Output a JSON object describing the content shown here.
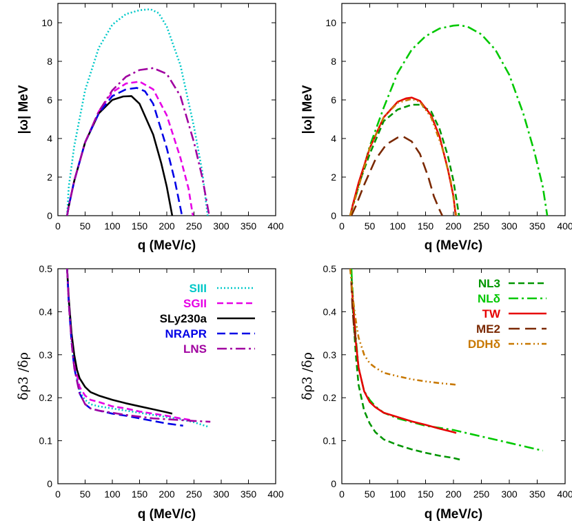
{
  "chart_data": [
    {
      "type": "line",
      "panel": "top-left",
      "xlabel": "q (MeV/c)",
      "ylabel": "|ω| MeV",
      "xlim": [
        0,
        400
      ],
      "ylim": [
        0,
        11
      ],
      "xticks": [
        0,
        50,
        100,
        150,
        200,
        250,
        300,
        350,
        400
      ],
      "yticks": [
        0,
        2,
        4,
        6,
        8,
        10
      ],
      "series": [
        {
          "key": "SIII",
          "color": "#00c8c8",
          "dash": "2,3",
          "x": [
            17,
            20,
            30,
            50,
            75,
            100,
            125,
            150,
            170,
            185,
            200,
            225,
            250,
            265,
            275
          ],
          "y": [
            0,
            1.5,
            3.6,
            6.5,
            8.7,
            9.9,
            10.45,
            10.65,
            10.7,
            10.5,
            9.8,
            7.8,
            4.6,
            2.3,
            0
          ]
        },
        {
          "key": "SGII",
          "color": "#e600e6",
          "dash": "9,5",
          "x": [
            17,
            20,
            30,
            50,
            75,
            100,
            125,
            150,
            175,
            200,
            225,
            240,
            248
          ],
          "y": [
            0,
            0.5,
            1.8,
            3.8,
            5.4,
            6.4,
            6.85,
            6.95,
            6.55,
            5.2,
            3.0,
            1.4,
            0
          ]
        },
        {
          "key": "SLy230a",
          "color": "#000000",
          "dash": "",
          "x": [
            17,
            20,
            30,
            50,
            75,
            100,
            120,
            135,
            150,
            175,
            190,
            200,
            210
          ],
          "y": [
            0,
            0.5,
            1.8,
            3.8,
            5.3,
            6.0,
            6.18,
            6.2,
            5.8,
            4.2,
            2.7,
            1.5,
            0
          ]
        },
        {
          "key": "NRAPR",
          "color": "#0000e6",
          "dash": "12,6",
          "x": [
            17,
            20,
            30,
            50,
            75,
            100,
            125,
            145,
            160,
            175,
            200,
            215,
            228
          ],
          "y": [
            0,
            0.5,
            1.8,
            3.8,
            5.3,
            6.2,
            6.55,
            6.62,
            6.45,
            5.8,
            3.5,
            1.8,
            0
          ]
        },
        {
          "key": "LNS",
          "color": "#a000a0",
          "dash": "14,5,3,5",
          "x": [
            17,
            20,
            30,
            50,
            75,
            100,
            125,
            150,
            175,
            200,
            225,
            250,
            265,
            278
          ],
          "y": [
            0,
            0.5,
            1.8,
            3.8,
            5.4,
            6.5,
            7.2,
            7.55,
            7.65,
            7.35,
            6.2,
            3.8,
            2.0,
            0
          ]
        }
      ]
    },
    {
      "type": "line",
      "panel": "top-right",
      "xlabel": "q (MeV/c)",
      "ylabel": "|ω| MeV",
      "xlim": [
        0,
        400
      ],
      "ylim": [
        0,
        11
      ],
      "xticks": [
        0,
        50,
        100,
        150,
        200,
        250,
        300,
        350,
        400
      ],
      "yticks": [
        0,
        2,
        4,
        6,
        8,
        10
      ],
      "series": [
        {
          "key": "NLδ",
          "color": "#00c800",
          "dash": "14,5,3,5",
          "x": [
            15,
            25,
            50,
            75,
            100,
            125,
            150,
            175,
            200,
            210,
            225,
            250,
            275,
            300,
            325,
            345,
            360,
            368
          ],
          "y": [
            0,
            1.0,
            3.6,
            5.6,
            7.4,
            8.6,
            9.3,
            9.7,
            9.85,
            9.87,
            9.8,
            9.4,
            8.6,
            7.3,
            5.3,
            3.3,
            1.5,
            0
          ]
        },
        {
          "key": "NL3",
          "color": "#009600",
          "dash": "9,5",
          "x": [
            15,
            20,
            30,
            50,
            75,
            100,
            125,
            140,
            160,
            175,
            190,
            200,
            210
          ],
          "y": [
            0,
            0.6,
            1.6,
            3.2,
            4.9,
            5.5,
            5.75,
            5.75,
            5.4,
            4.5,
            3.1,
            1.8,
            0
          ]
        },
        {
          "key": "TW",
          "color": "#e60000",
          "dash": "",
          "x": [
            15,
            20,
            30,
            50,
            75,
            100,
            115,
            125,
            140,
            160,
            175,
            190,
            200,
            204
          ],
          "y": [
            0,
            0.6,
            1.7,
            3.5,
            5.1,
            5.9,
            6.08,
            6.12,
            5.95,
            5.2,
            4.1,
            2.4,
            1.0,
            0
          ]
        },
        {
          "key": "ME2",
          "color": "#7a2800",
          "dash": "16,8",
          "x": [
            17,
            25,
            40,
            60,
            80,
            100,
            110,
            125,
            140,
            155,
            165,
            175,
            180
          ],
          "y": [
            0,
            0.5,
            1.6,
            2.9,
            3.7,
            4.05,
            4.1,
            3.85,
            3.2,
            2.0,
            1.0,
            0.3,
            0
          ]
        },
        {
          "key": "DDHδ",
          "color": "#c87800",
          "dash": "8,4,2,4,2,4",
          "x": [
            15,
            25,
            50,
            75,
            100,
            125,
            140,
            160,
            180,
            195,
            205
          ],
          "y": [
            0,
            1.0,
            3.5,
            5.1,
            5.85,
            6.05,
            5.9,
            5.1,
            3.5,
            1.8,
            0
          ]
        }
      ]
    },
    {
      "type": "line",
      "panel": "bottom-left",
      "xlabel": "q (MeV/c)",
      "ylabel": "δρ3 /δρ",
      "xlim": [
        0,
        400
      ],
      "ylim": [
        0,
        0.5
      ],
      "xticks": [
        0,
        50,
        100,
        150,
        200,
        250,
        300,
        350,
        400
      ],
      "yticks": [
        0,
        0.1,
        0.2,
        0.3,
        0.4,
        0.5
      ],
      "legend_position": "top-right",
      "legend": [
        {
          "label": "SIII",
          "color": "#00c8c8",
          "dash": "2,3"
        },
        {
          "label": "SGII",
          "color": "#e600e6",
          "dash": "9,5"
        },
        {
          "label": "SLy230a",
          "color": "#000000",
          "dash": ""
        },
        {
          "label": "NRAPR",
          "color": "#0000e6",
          "dash": "12,6"
        },
        {
          "label": "LNS",
          "color": "#a000a0",
          "dash": "14,5,3,5"
        }
      ],
      "series": [
        {
          "key": "SIII",
          "color": "#00c8c8",
          "dash": "2,3",
          "x": [
            17,
            20,
            25,
            30,
            40,
            50,
            60,
            75,
            100,
            125,
            150,
            175,
            200,
            225,
            250,
            275
          ],
          "y": [
            0.5,
            0.42,
            0.33,
            0.27,
            0.215,
            0.195,
            0.185,
            0.18,
            0.175,
            0.17,
            0.165,
            0.16,
            0.155,
            0.15,
            0.143,
            0.133
          ]
        },
        {
          "key": "SGII",
          "color": "#e600e6",
          "dash": "9,5",
          "x": [
            17,
            20,
            25,
            30,
            40,
            50,
            60,
            75,
            100,
            125,
            150,
            175,
            200,
            225,
            245
          ],
          "y": [
            0.5,
            0.43,
            0.34,
            0.28,
            0.225,
            0.205,
            0.195,
            0.19,
            0.18,
            0.175,
            0.168,
            0.163,
            0.158,
            0.152,
            0.148
          ]
        },
        {
          "key": "SLy230a",
          "color": "#000000",
          "dash": "",
          "x": [
            17,
            20,
            25,
            30,
            35,
            40,
            50,
            60,
            75,
            100,
            125,
            150,
            175,
            200,
            210
          ],
          "y": [
            0.5,
            0.43,
            0.35,
            0.3,
            0.265,
            0.245,
            0.225,
            0.213,
            0.205,
            0.195,
            0.187,
            0.18,
            0.173,
            0.166,
            0.163
          ]
        },
        {
          "key": "NRAPR",
          "color": "#0000e6",
          "dash": "12,6",
          "x": [
            17,
            20,
            25,
            30,
            40,
            50,
            60,
            75,
            100,
            125,
            150,
            175,
            200,
            230
          ],
          "y": [
            0.5,
            0.42,
            0.33,
            0.27,
            0.21,
            0.185,
            0.175,
            0.17,
            0.163,
            0.158,
            0.152,
            0.146,
            0.14,
            0.135
          ]
        },
        {
          "key": "LNS",
          "color": "#a000a0",
          "dash": "14,5,3,5",
          "x": [
            17,
            20,
            25,
            30,
            40,
            50,
            60,
            75,
            100,
            125,
            150,
            175,
            200,
            225,
            250,
            280
          ],
          "y": [
            0.5,
            0.42,
            0.33,
            0.27,
            0.21,
            0.185,
            0.175,
            0.17,
            0.165,
            0.16,
            0.156,
            0.152,
            0.15,
            0.148,
            0.146,
            0.144
          ]
        }
      ]
    },
    {
      "type": "line",
      "panel": "bottom-right",
      "xlabel": "q (MeV/c)",
      "ylabel": "δρ3 /δρ",
      "xlim": [
        0,
        400
      ],
      "ylim": [
        0,
        0.5
      ],
      "xticks": [
        0,
        50,
        100,
        150,
        200,
        250,
        300,
        350,
        400
      ],
      "yticks": [
        0,
        0.1,
        0.2,
        0.3,
        0.4,
        0.5
      ],
      "legend_position": "top-right",
      "legend": [
        {
          "label": "NL3",
          "color": "#009600",
          "dash": "9,5"
        },
        {
          "label": "NLδ",
          "color": "#00c800",
          "dash": "14,5,3,5"
        },
        {
          "label": "TW",
          "color": "#e60000",
          "dash": ""
        },
        {
          "label": "ME2",
          "color": "#7a2800",
          "dash": "16,8"
        },
        {
          "label": "DDHδ",
          "color": "#c87800",
          "dash": "8,4,2,4,2,4"
        }
      ],
      "series": [
        {
          "key": "NL3",
          "color": "#009600",
          "dash": "9,5",
          "x": [
            17,
            20,
            25,
            30,
            40,
            50,
            60,
            75,
            100,
            125,
            150,
            175,
            200,
            215
          ],
          "y": [
            0.5,
            0.4,
            0.3,
            0.23,
            0.17,
            0.14,
            0.12,
            0.103,
            0.09,
            0.08,
            0.072,
            0.065,
            0.06,
            0.055
          ]
        },
        {
          "key": "NLδ",
          "color": "#00c800",
          "dash": "14,5,3,5",
          "x": [
            17,
            20,
            25,
            30,
            40,
            50,
            60,
            75,
            100,
            150,
            200,
            250,
            300,
            360
          ],
          "y": [
            0.5,
            0.43,
            0.34,
            0.27,
            0.215,
            0.195,
            0.18,
            0.165,
            0.152,
            0.135,
            0.125,
            0.11,
            0.095,
            0.077
          ]
        },
        {
          "key": "TW",
          "color": "#e60000",
          "dash": "",
          "x": [
            17,
            20,
            25,
            30,
            40,
            50,
            60,
            75,
            100,
            125,
            150,
            175,
            200,
            205
          ],
          "y": [
            0.47,
            0.42,
            0.33,
            0.27,
            0.215,
            0.19,
            0.178,
            0.165,
            0.155,
            0.145,
            0.137,
            0.128,
            0.12,
            0.118
          ]
        },
        {
          "key": "ME2",
          "color": "#7a2800",
          "dash": "16,8",
          "x": [
            17,
            19,
            22,
            25
          ],
          "y": [
            0.47,
            0.41,
            0.36,
            0.33
          ]
        },
        {
          "key": "DDHδ",
          "color": "#c87800",
          "dash": "8,4,2,4,2,4",
          "x": [
            15,
            20,
            25,
            30,
            40,
            50,
            60,
            75,
            100,
            125,
            150,
            175,
            200,
            205
          ],
          "y": [
            0.5,
            0.43,
            0.38,
            0.34,
            0.3,
            0.28,
            0.27,
            0.258,
            0.25,
            0.243,
            0.238,
            0.234,
            0.231,
            0.23
          ]
        }
      ]
    }
  ]
}
